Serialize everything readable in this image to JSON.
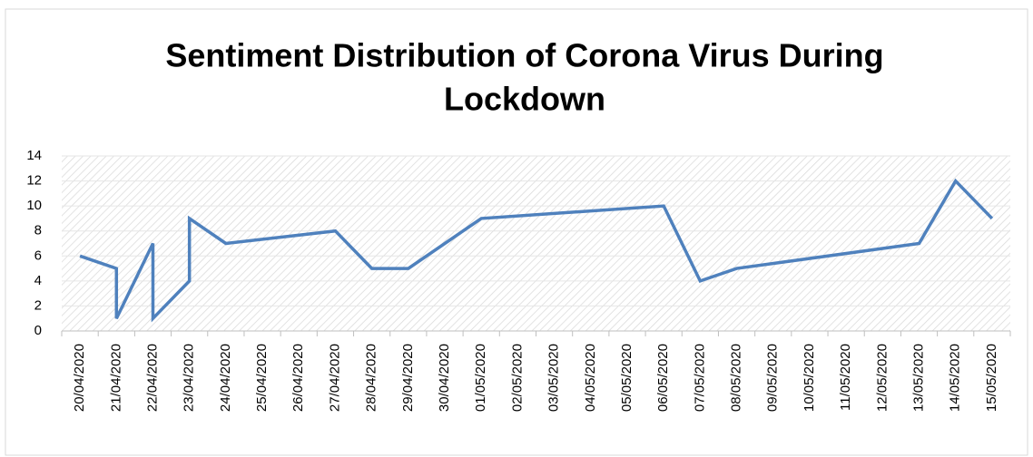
{
  "chart_data": {
    "type": "line",
    "title_lines": [
      "Sentiment Distribution of Corona Virus During",
      "Lockdown"
    ],
    "categories": [
      "20/04/2020",
      "21/04/2020",
      "22/04/2020",
      "23/04/2020",
      "24/04/2020",
      "25/04/2020",
      "26/04/2020",
      "27/04/2020",
      "28/04/2020",
      "29/04/2020",
      "30/04/2020",
      "01/05/2020",
      "02/05/2020",
      "03/05/2020",
      "04/05/2020",
      "05/05/2020",
      "06/05/2020",
      "07/05/2020",
      "08/05/2020",
      "09/05/2020",
      "10/05/2020",
      "11/05/2020",
      "12/05/2020",
      "13/05/2020",
      "14/05/2020",
      "15/05/2020"
    ],
    "series": [
      {
        "color": "#4f81bd",
        "x": [
          "20/04/2020",
          "21/04/2020",
          "21/04/2020",
          "22/04/2020",
          "22/04/2020",
          "23/04/2020",
          "23/04/2020",
          "24/04/2020",
          "27/04/2020",
          "28/04/2020",
          "29/04/2020",
          "01/05/2020",
          "06/05/2020",
          "07/05/2020",
          "08/05/2020",
          "13/05/2020",
          "14/05/2020",
          "15/05/2020"
        ],
        "values": [
          6,
          5,
          1,
          7,
          1,
          4,
          9,
          7,
          8,
          5,
          5,
          9,
          10,
          4,
          5,
          7,
          12,
          9
        ]
      }
    ],
    "ylim": [
      0,
      14
    ],
    "yticks": [
      0,
      2,
      4,
      6,
      8,
      10,
      12,
      14
    ],
    "grid": true
  }
}
